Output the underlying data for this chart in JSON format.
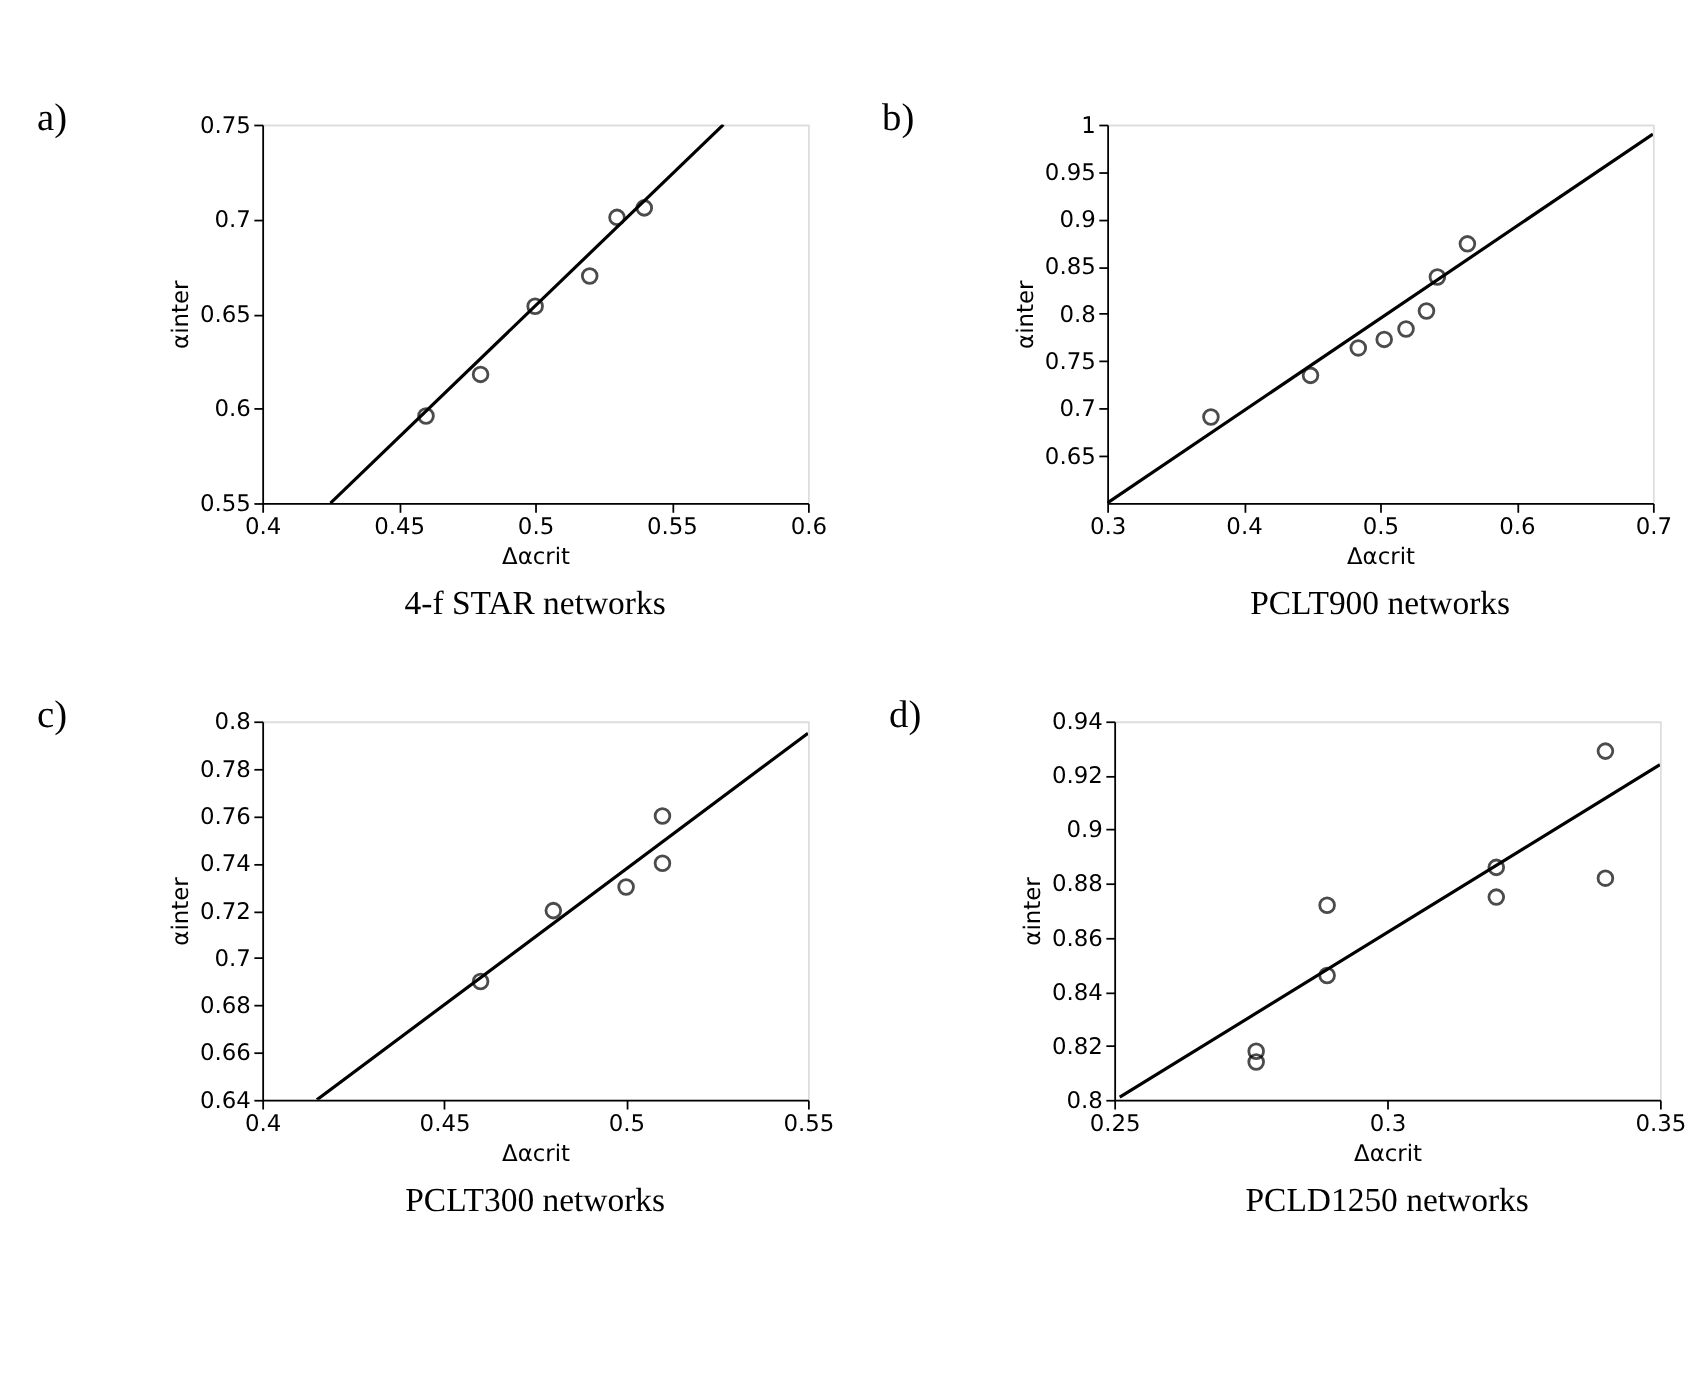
{
  "chart_data": [
    {
      "type": "scatter",
      "title": "a)",
      "xlabel": "Δαcrit",
      "ylabel": "αinter",
      "annotations": [
        "4-f STAR networks"
      ],
      "xlim": [
        0.4,
        0.6
      ],
      "xticks": [
        0.4,
        0.45,
        0.5,
        0.55,
        0.6
      ],
      "ylim": [
        0.55,
        0.75
      ],
      "yticks": [
        0.55,
        0.6,
        0.65,
        0.7,
        0.75
      ],
      "grid": false,
      "series": [
        {
          "marker": "circle",
          "color": "#000000",
          "x": [
            0.46,
            0.48,
            0.5,
            0.52,
            0.53,
            0.54
          ],
          "values": [
            0.596,
            0.618,
            0.654,
            0.67,
            0.701,
            0.706
          ]
        },
        {
          "type": "line",
          "line_style": "solid",
          "color": "#000000",
          "x": [
            0.425,
            0.569
          ],
          "values": [
            0.55,
            0.75
          ]
        }
      ]
    },
    {
      "type": "scatter",
      "title": "b)",
      "xlabel": "Δαcrit",
      "ylabel": "αinter",
      "annotations": [
        "PCLT900 networks"
      ],
      "xlim": [
        0.3,
        0.7
      ],
      "xticks": [
        0.3,
        0.4,
        0.5,
        0.6,
        0.7
      ],
      "ylim": [
        0.6,
        1
      ],
      "yticks": [
        0.65,
        0.7,
        0.75,
        0.8,
        0.85,
        0.9,
        0.95,
        1
      ],
      "grid": false,
      "series": [
        {
          "marker": "circle",
          "color": "#000000",
          "x": [
            0.376,
            0.449,
            0.484,
            0.503,
            0.519,
            0.534,
            0.542,
            0.564
          ],
          "values": [
            0.691,
            0.735,
            0.764,
            0.773,
            0.784,
            0.803,
            0.839,
            0.874
          ]
        },
        {
          "type": "line",
          "line_style": "solid",
          "color": "#000000",
          "x": [
            0.3,
            0.7
          ],
          "values": [
            0.6,
            0.99
          ]
        }
      ]
    },
    {
      "type": "scatter",
      "title": "c)",
      "xlabel": "Δαcrit",
      "ylabel": "αinter",
      "annotations": [
        "PCLT300 networks"
      ],
      "xlim": [
        0.4,
        0.55
      ],
      "xticks": [
        0.4,
        0.45,
        0.5,
        0.55
      ],
      "ylim": [
        0.64,
        0.8
      ],
      "yticks": [
        0.64,
        0.66,
        0.68,
        0.7,
        0.72,
        0.74,
        0.76,
        0.78,
        0.8
      ],
      "grid": false,
      "series": [
        {
          "marker": "circle",
          "color": "#000000",
          "x": [
            0.46,
            0.48,
            0.5,
            0.51,
            0.51
          ],
          "values": [
            0.69,
            0.72,
            0.73,
            0.74,
            0.76
          ]
        },
        {
          "type": "line",
          "line_style": "solid",
          "color": "#000000",
          "x": [
            0.415,
            0.55
          ],
          "values": [
            0.64,
            0.795
          ]
        }
      ]
    },
    {
      "type": "scatter",
      "title": "d)",
      "xlabel": "Δαcrit",
      "ylabel": "αinter",
      "annotations": [
        "PCLD1250 networks"
      ],
      "xlim": [
        0.25,
        0.35
      ],
      "xticks": [
        0.25,
        0.3,
        0.35
      ],
      "ylim": [
        0.8,
        0.94
      ],
      "yticks": [
        0.8,
        0.82,
        0.84,
        0.86,
        0.88,
        0.9,
        0.92,
        0.94
      ],
      "grid": false,
      "series": [
        {
          "marker": "circle",
          "color": "#000000",
          "x": [
            0.276,
            0.276,
            0.289,
            0.289,
            0.32,
            0.32,
            0.34,
            0.34
          ],
          "values": [
            0.818,
            0.814,
            0.872,
            0.846,
            0.886,
            0.875,
            0.929,
            0.882
          ]
        },
        {
          "type": "line",
          "line_style": "solid",
          "color": "#000000",
          "x": [
            0.251,
            0.35
          ],
          "values": [
            0.801,
            0.924
          ]
        }
      ]
    }
  ]
}
